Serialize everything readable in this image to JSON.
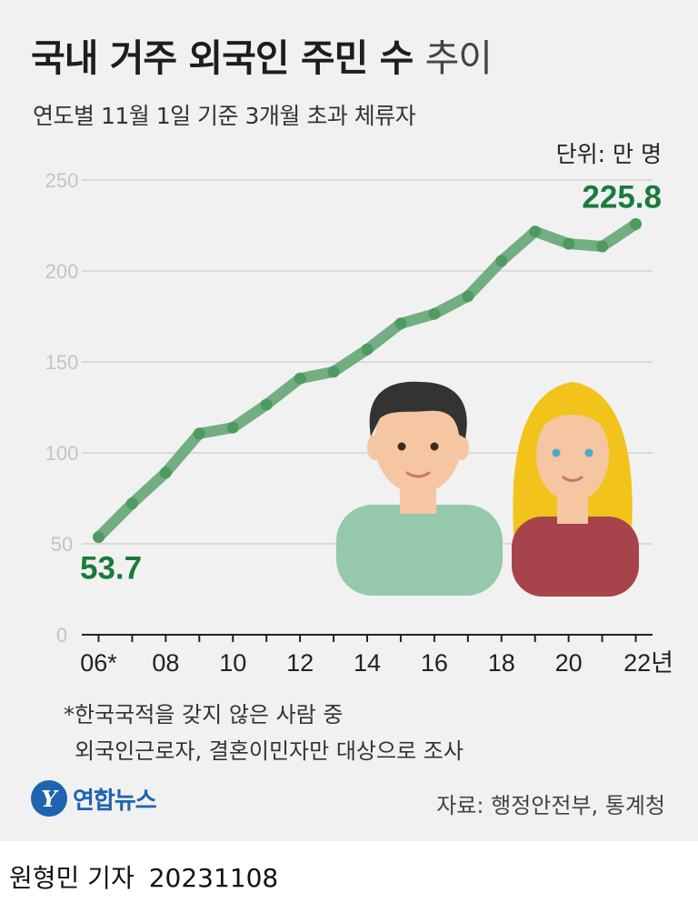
{
  "header": {
    "title_bold": "국내 거주 외국인 주민 수",
    "title_light": "추이",
    "subtitle": "연도별 11월 1일 기준 3개월 초과 체류자",
    "unit": "단위: 만 명"
  },
  "chart_data": {
    "type": "line",
    "title": "국내 거주 외국인 주민 수 추이",
    "subtitle": "연도별 11월 1일 기준 3개월 초과 체류자",
    "unit": "단위: 만 명",
    "x": [
      2006,
      2007,
      2008,
      2009,
      2010,
      2011,
      2012,
      2013,
      2014,
      2015,
      2016,
      2017,
      2018,
      2019,
      2020,
      2021,
      2022
    ],
    "y": [
      53.7,
      72.2,
      89.1,
      110.6,
      113.9,
      126.5,
      140.9,
      144.6,
      156.9,
      171.1,
      176.4,
      186.1,
      205.5,
      221.7,
      215.0,
      213.5,
      225.8
    ],
    "xticks": [
      "06*",
      "08",
      "10",
      "12",
      "14",
      "16",
      "18",
      "20",
      "22년"
    ],
    "xtick_years": [
      2006,
      2008,
      2010,
      2012,
      2014,
      2016,
      2018,
      2020,
      2022
    ],
    "yticks": [
      0,
      50,
      100,
      150,
      200,
      250
    ],
    "ylim": [
      0,
      250
    ],
    "grid": true,
    "line_color": "#6aaa7a",
    "marker_color": "#4f9a61",
    "label_color": "#1b7a3c",
    "annotations": [
      {
        "year": 2006,
        "text": "53.7"
      },
      {
        "year": 2022,
        "text": "225.8"
      }
    ]
  },
  "illustration": {
    "man_shirt": "#96c8ac",
    "woman_shirt": "#a7434a",
    "skin": "#f5c6a1",
    "man_hair": "#333333",
    "woman_hair": "#f2c31a"
  },
  "footnote": {
    "line1": "*한국국적을 갖지 않은 사람 중",
    "line2": "외국인근로자, 결혼이민자만 대상으로 조사"
  },
  "footer": {
    "logo_mark": "Y",
    "logo_text": "연합뉴스",
    "source": "자료: 행정안전부, 통계청"
  },
  "byline": {
    "reporter": "원형민 기자",
    "date": "20231108"
  }
}
